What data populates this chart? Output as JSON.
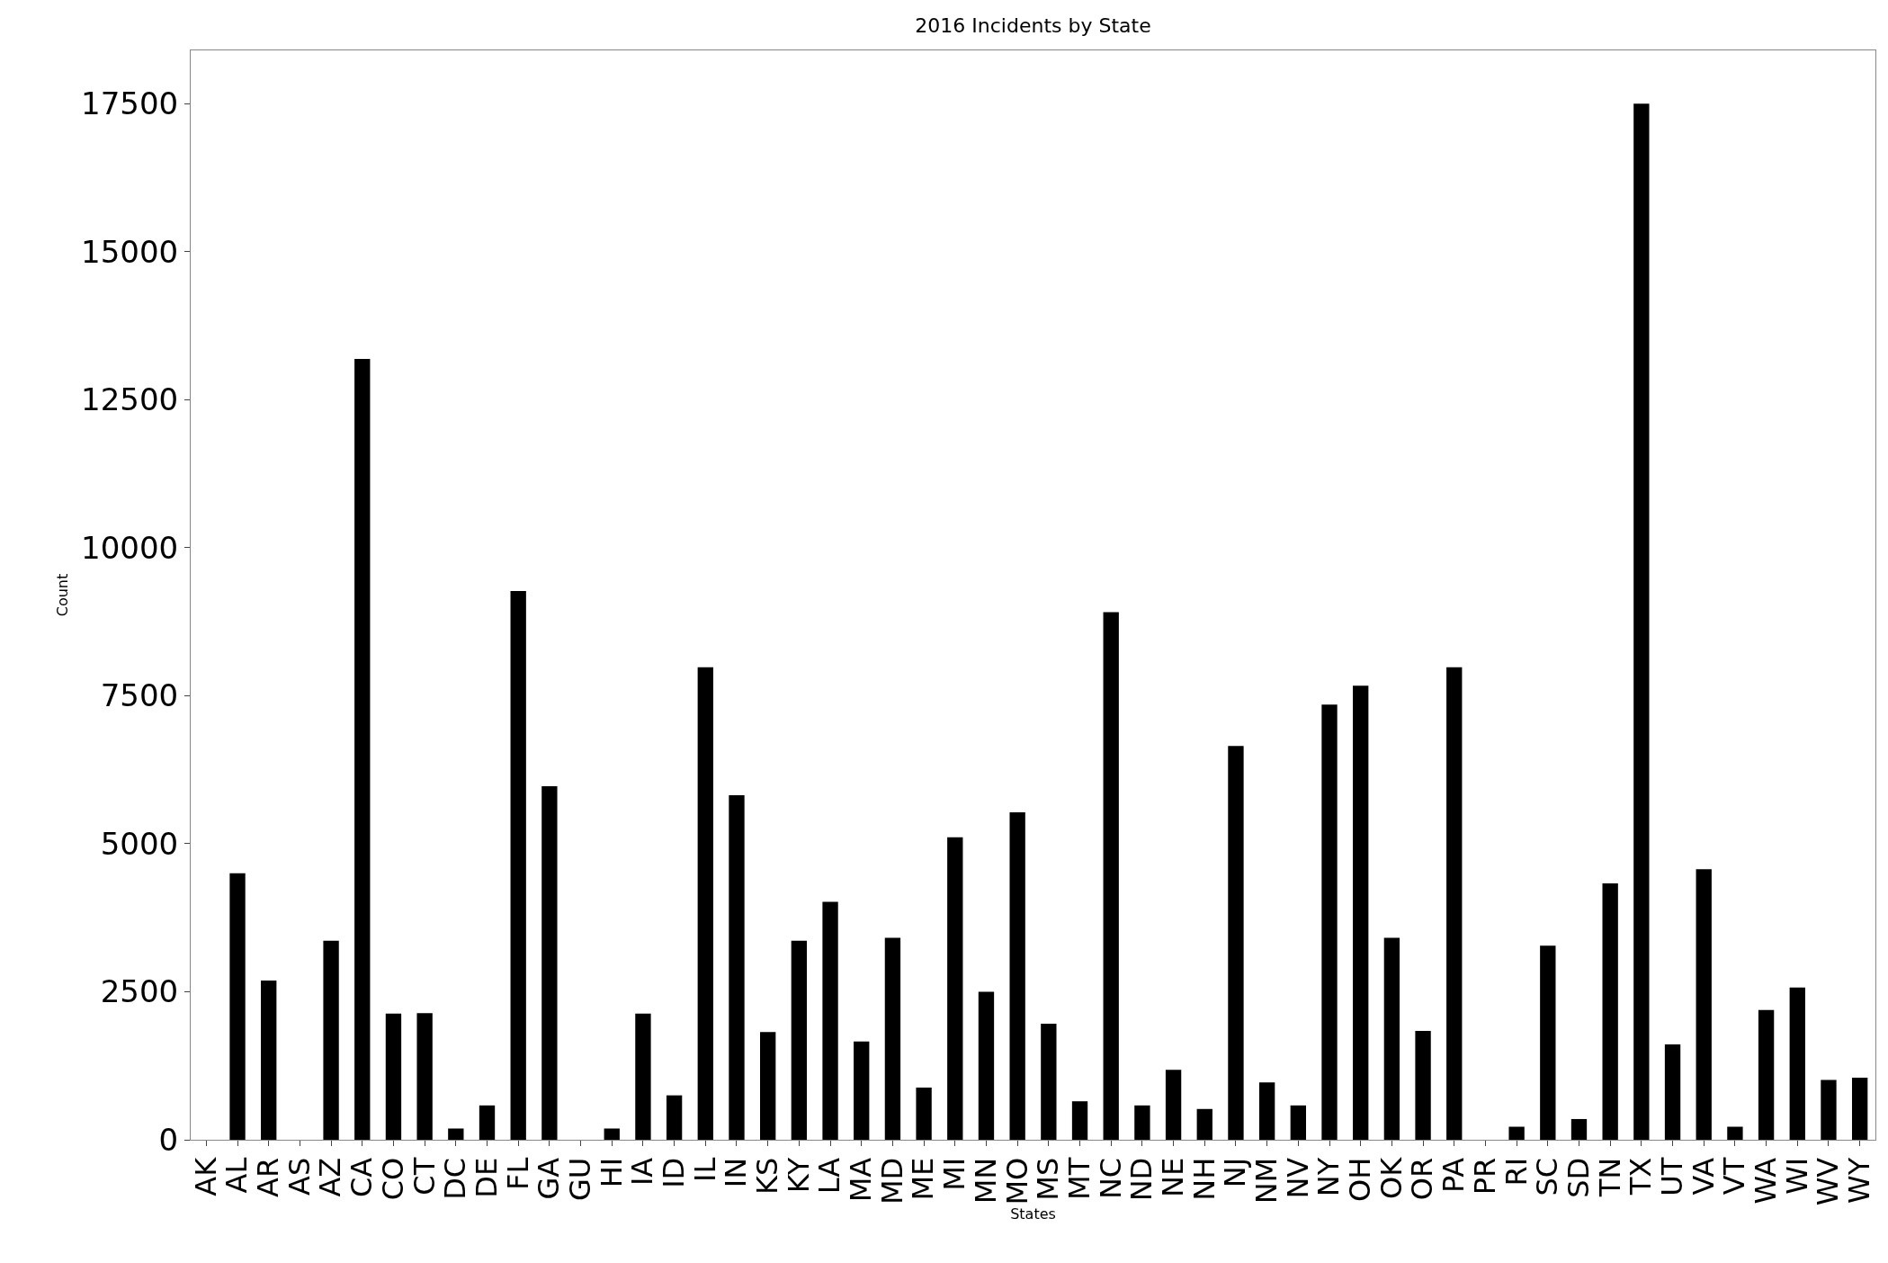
{
  "chart_data": {
    "type": "bar",
    "title": "2016 Incidents by State",
    "xlabel": "States",
    "ylabel": "Count",
    "categories": [
      "AK",
      "AL",
      "AR",
      "AS",
      "AZ",
      "CA",
      "CO",
      "CT",
      "DC",
      "DE",
      "FL",
      "GA",
      "GU",
      "HI",
      "IA",
      "ID",
      "IL",
      "IN",
      "KS",
      "KY",
      "LA",
      "MA",
      "MD",
      "ME",
      "MI",
      "MN",
      "MO",
      "MS",
      "MT",
      "NC",
      "ND",
      "NE",
      "NH",
      "NJ",
      "NM",
      "NV",
      "NY",
      "OH",
      "OK",
      "OR",
      "PA",
      "PR",
      "RI",
      "SC",
      "SD",
      "TN",
      "TX",
      "UT",
      "VA",
      "VT",
      "WA",
      "WI",
      "WV",
      "WY"
    ],
    "values": [
      0,
      4500,
      2690,
      0,
      3360,
      13190,
      2130,
      2140,
      190,
      580,
      9270,
      5970,
      0,
      190,
      2130,
      750,
      7980,
      5820,
      1820,
      3360,
      4020,
      1660,
      3410,
      880,
      5110,
      2500,
      5530,
      1960,
      650,
      8910,
      580,
      1180,
      520,
      6650,
      970,
      580,
      7350,
      7670,
      3410,
      1840,
      7980,
      0,
      220,
      3280,
      350,
      4330,
      17500,
      1610,
      4570,
      220,
      2190,
      2570,
      1010,
      1050
    ],
    "color": "#000000",
    "ylim": [
      0,
      18400
    ],
    "yticks": [
      0,
      2500,
      5000,
      7500,
      10000,
      12500,
      15000,
      17500
    ],
    "grid": false
  }
}
